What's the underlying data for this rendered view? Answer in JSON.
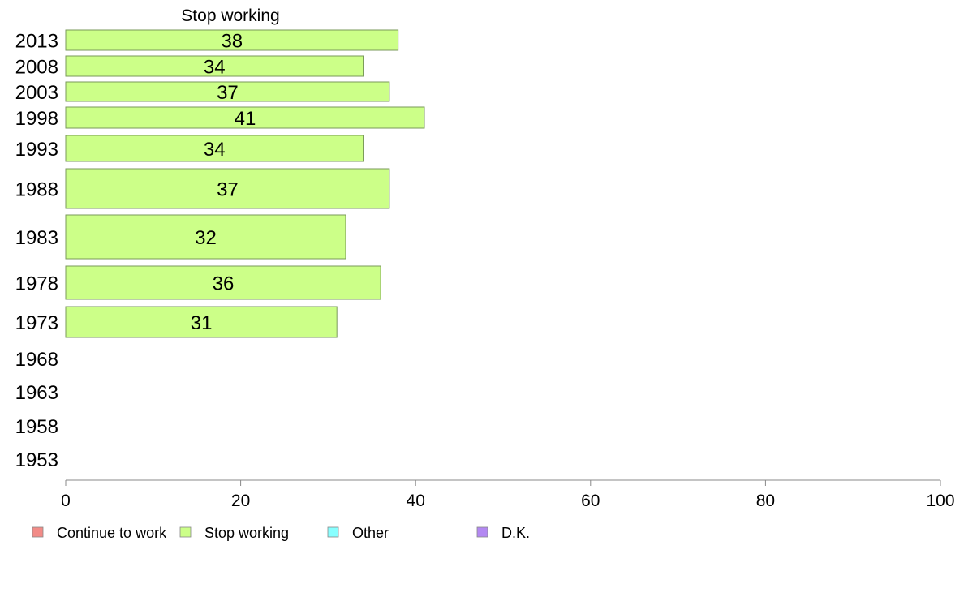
{
  "chart_data": {
    "type": "bar",
    "orientation": "horizontal",
    "panel_title": "Stop working",
    "categories": [
      "2013",
      "2008",
      "2003",
      "1998",
      "1993",
      "1988",
      "1983",
      "1978",
      "1973",
      "1968",
      "1963",
      "1958",
      "1953"
    ],
    "series": [
      {
        "name": "Stop working",
        "values": [
          38,
          34,
          37,
          41,
          34,
          37,
          32,
          36,
          31,
          null,
          null,
          null,
          null
        ]
      }
    ],
    "xlim": [
      0,
      100
    ],
    "x_ticks": [
      "0",
      "20",
      "40",
      "60",
      "80",
      "100"
    ],
    "legend": {
      "placement": "bottom",
      "items": [
        {
          "label": "Continue to work",
          "color": "#f28b87"
        },
        {
          "label": "Stop working",
          "color": "#ccff88"
        },
        {
          "label": "Other",
          "color": "#88ffff"
        },
        {
          "label": "D.K.",
          "color": "#b388f2"
        }
      ]
    },
    "colors": {
      "bar_fill": "#ccff88",
      "bar_stroke": "#7a9a5a",
      "axis": "#888888"
    }
  }
}
